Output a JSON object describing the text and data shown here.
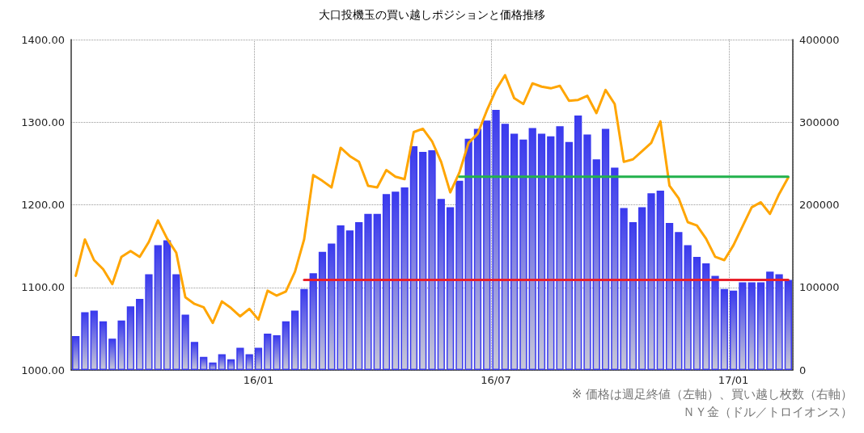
{
  "chart_data": {
    "type": "bar",
    "title": "大口投機玉の買い越しポジションと価格推移",
    "categories": [
      null,
      null,
      null,
      null,
      null,
      null,
      null,
      null,
      null,
      null,
      null,
      null,
      null,
      null,
      null,
      null,
      null,
      null,
      null,
      null,
      "16/01",
      null,
      null,
      null,
      null,
      null,
      null,
      null,
      null,
      null,
      null,
      null,
      null,
      null,
      null,
      null,
      null,
      null,
      null,
      null,
      null,
      null,
      null,
      null,
      null,
      null,
      "16/07",
      null,
      null,
      null,
      null,
      null,
      null,
      null,
      null,
      null,
      null,
      null,
      null,
      null,
      null,
      null,
      null,
      null,
      null,
      null,
      null,
      null,
      null,
      null,
      null,
      null,
      "17/01",
      null,
      null,
      null,
      null,
      null,
      null
    ],
    "series": [
      {
        "axis": "y2",
        "color": "#3a3aee",
        "values": [
          41000,
          70000,
          72000,
          59000,
          38000,
          60000,
          77000,
          86000,
          116000,
          151000,
          157000,
          116000,
          67000,
          34000,
          16000,
          9000,
          19000,
          13000,
          27000,
          19000,
          27000,
          44000,
          42000,
          59000,
          72000,
          98000,
          117000,
          143000,
          153000,
          175000,
          169000,
          179000,
          189000,
          189000,
          213000,
          216000,
          221000,
          271000,
          264000,
          266000,
          207000,
          197000,
          229000,
          280000,
          292000,
          302000,
          315000,
          298000,
          286000,
          279000,
          293000,
          286000,
          283000,
          295000,
          276000,
          308000,
          285000,
          255000,
          292000,
          245000,
          196000,
          179000,
          197000,
          214000,
          217000,
          178000,
          167000,
          151000,
          137000,
          129000,
          114000,
          98000,
          96000,
          106000,
          106000,
          106000,
          119000,
          116000,
          109000
        ]
      },
      {
        "type": "line",
        "color": "#ffa500",
        "values": [
          1114,
          1158,
          1133,
          1122,
          1104,
          1137,
          1144,
          1137,
          1155,
          1181,
          1159,
          1142,
          1088,
          1080,
          1076,
          1057,
          1083,
          1075,
          1065,
          1074,
          1061,
          1096,
          1090,
          1095,
          1119,
          1158,
          1236,
          1229,
          1221,
          1269,
          1259,
          1252,
          1223,
          1221,
          1242,
          1234,
          1231,
          1288,
          1292,
          1277,
          1252,
          1215,
          1239,
          1275,
          1286,
          1314,
          1339,
          1357,
          1329,
          1322,
          1347,
          1343,
          1341,
          1344,
          1326,
          1327,
          1332,
          1311,
          1339,
          1322,
          1252,
          1255,
          1265,
          1275,
          1301,
          1223,
          1208,
          1179,
          1175,
          1159,
          1137,
          1133,
          1151,
          1174,
          1197,
          1203,
          1189,
          1213,
          1233
        ]
      },
      {
        "type": "line",
        "color": "#22b14c",
        "values": [
          null,
          null,
          null,
          null,
          null,
          null,
          null,
          null,
          null,
          null,
          null,
          null,
          null,
          null,
          null,
          null,
          null,
          null,
          null,
          null,
          null,
          null,
          null,
          null,
          null,
          null,
          null,
          null,
          null,
          null,
          null,
          null,
          null,
          null,
          null,
          null,
          null,
          null,
          null,
          null,
          null,
          null,
          1234,
          1234,
          1234,
          1234,
          1234,
          1234,
          1234,
          1234,
          1234,
          1234,
          1234,
          1234,
          1234,
          1234,
          1234,
          1234,
          1234,
          1234,
          1234,
          1234,
          1234,
          1234,
          1234,
          1234,
          1234,
          1234,
          1234,
          1234,
          1234,
          1234,
          1234,
          1234,
          1234,
          1234,
          1234,
          1234,
          1234
        ]
      },
      {
        "type": "line",
        "color": "#e8202a",
        "values": [
          null,
          null,
          null,
          null,
          null,
          null,
          null,
          null,
          null,
          null,
          null,
          null,
          null,
          null,
          null,
          null,
          null,
          null,
          null,
          null,
          null,
          null,
          null,
          null,
          null,
          1109,
          1109,
          1109,
          1109,
          1109,
          1109,
          1109,
          1109,
          1109,
          1109,
          1109,
          1109,
          1109,
          1109,
          1109,
          1109,
          1109,
          1109,
          1109,
          1109,
          1109,
          1109,
          1109,
          1109,
          1109,
          1109,
          1109,
          1109,
          1109,
          1109,
          1109,
          1109,
          1109,
          1109,
          1109,
          1109,
          1109,
          1109,
          1109,
          1109,
          1109,
          1109,
          1109,
          1109,
          1109,
          1109,
          1109,
          1109,
          1109,
          1109,
          1109,
          1109,
          1109,
          1109
        ]
      }
    ],
    "ylim": [
      1000,
      1400
    ],
    "yticks": [
      {
        "value": 1000,
        "label": "1000.00"
      },
      {
        "value": 1100,
        "label": "1100.00"
      },
      {
        "value": 1200,
        "label": "1200.00"
      },
      {
        "value": 1300,
        "label": "1300.00"
      },
      {
        "value": 1400,
        "label": "1400.00"
      }
    ],
    "y2lim": [
      0,
      400000
    ],
    "y2ticks": [
      0,
      100000,
      200000,
      300000,
      400000
    ],
    "grid": true,
    "marker": "none",
    "annotations": [
      "※ 価格は週足終値（左軸）、買い越し枚数（右軸）",
      "ＮＹ金（ドル／トロイオンス）"
    ]
  }
}
